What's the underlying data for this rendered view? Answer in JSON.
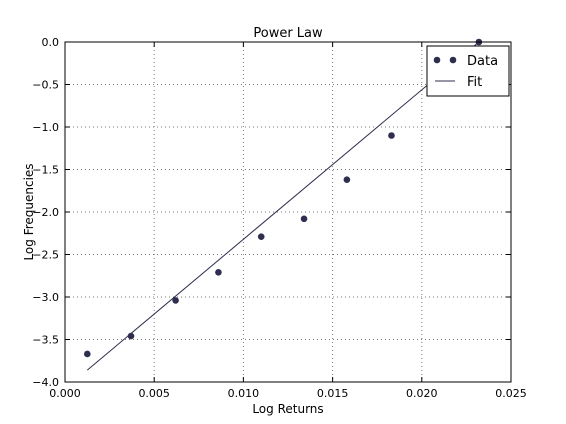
{
  "chart_data": {
    "type": "scatter",
    "title": "Power Law",
    "xlabel": "Log Returns",
    "ylabel": "Log Frequencies",
    "xlim": [
      0.0,
      0.025
    ],
    "ylim": [
      -4.0,
      0.0
    ],
    "grid": true,
    "grid_style": "dotted",
    "legend_position": "top-right",
    "x_ticks": [
      {
        "value": 0.0,
        "label": "0.000"
      },
      {
        "value": 0.005,
        "label": "0.005"
      },
      {
        "value": 0.01,
        "label": "0.010"
      },
      {
        "value": 0.015,
        "label": "0.015"
      },
      {
        "value": 0.02,
        "label": "0.020"
      },
      {
        "value": 0.025,
        "label": "0.025"
      }
    ],
    "y_ticks": [
      {
        "value": 0.0,
        "label": "0.0"
      },
      {
        "value": -0.5,
        "label": "−0.5"
      },
      {
        "value": -1.0,
        "label": "−1.0"
      },
      {
        "value": -1.5,
        "label": "−1.5"
      },
      {
        "value": -2.0,
        "label": "−2.0"
      },
      {
        "value": -2.5,
        "label": "−2.5"
      },
      {
        "value": -3.0,
        "label": "−3.0"
      },
      {
        "value": -3.5,
        "label": "−3.5"
      },
      {
        "value": -4.0,
        "label": "−4.0"
      }
    ],
    "series": [
      {
        "name": "Data",
        "kind": "scatter",
        "color": "#2e2e4e",
        "x": [
          0.00125,
          0.0037,
          0.0062,
          0.0086,
          0.011,
          0.0134,
          0.0158,
          0.0183,
          0.0232
        ],
        "y": [
          -3.67,
          -3.46,
          -3.04,
          -2.71,
          -2.29,
          -2.08,
          -1.62,
          -1.1,
          0.0
        ]
      },
      {
        "name": "Fit",
        "kind": "line",
        "color": "#2e2e4e",
        "x": [
          0.00125,
          0.0232
        ],
        "y": [
          -3.86,
          0.0
        ]
      }
    ]
  }
}
